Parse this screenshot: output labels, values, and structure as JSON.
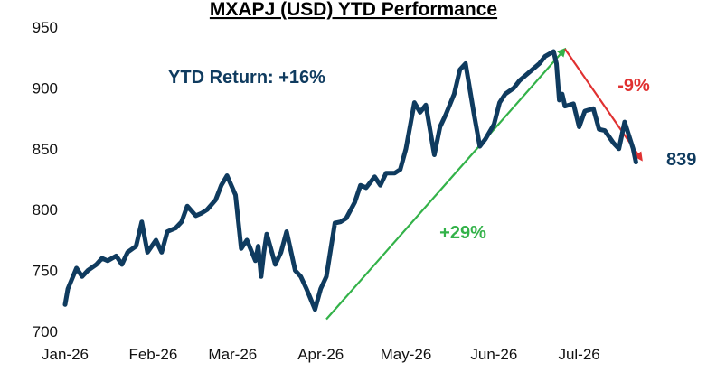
{
  "chart_data": {
    "type": "line",
    "title": "MXAPJ (USD) YTD Performance",
    "xlabel": "",
    "ylabel": "",
    "ylim": [
      700,
      950
    ],
    "yticks": [
      700,
      750,
      800,
      850,
      900,
      950
    ],
    "xtick_labels": [
      "Jan-26",
      "Feb-26",
      "Mar-26",
      "Apr-26",
      "May-26",
      "Jun-26",
      "Jul-26"
    ],
    "xlim": [
      "2026-01-01",
      "2026-07-25"
    ],
    "grid": false,
    "colors": {
      "line": "#0f3b5f",
      "up": "#33b249",
      "down": "#e03131",
      "text": "#0f3b5f"
    },
    "series": [
      {
        "x": [
          "2026-01-01",
          "2026-01-02",
          "2026-01-05",
          "2026-01-07",
          "2026-01-09",
          "2026-01-12",
          "2026-01-14",
          "2026-01-16",
          "2026-01-19",
          "2026-01-21",
          "2026-01-23",
          "2026-01-26",
          "2026-01-28",
          "2026-01-30",
          "2026-02-02",
          "2026-02-04",
          "2026-02-06",
          "2026-02-09",
          "2026-02-11",
          "2026-02-13",
          "2026-02-16",
          "2026-02-18",
          "2026-02-20",
          "2026-02-23",
          "2026-02-25",
          "2026-02-27",
          "2026-03-02",
          "2026-03-04",
          "2026-03-06",
          "2026-03-09",
          "2026-03-10",
          "2026-03-11",
          "2026-03-12",
          "2026-03-13",
          "2026-03-16",
          "2026-03-18",
          "2026-03-20",
          "2026-03-23",
          "2026-03-25",
          "2026-03-27",
          "2026-03-30",
          "2026-04-01",
          "2026-04-03",
          "2026-04-06",
          "2026-04-08",
          "2026-04-10",
          "2026-04-13",
          "2026-04-15",
          "2026-04-17",
          "2026-04-20",
          "2026-04-22",
          "2026-04-24",
          "2026-04-27",
          "2026-04-29",
          "2026-05-01",
          "2026-05-04",
          "2026-05-06",
          "2026-05-08",
          "2026-05-11",
          "2026-05-13",
          "2026-05-15",
          "2026-05-18",
          "2026-05-20",
          "2026-05-22",
          "2026-05-25",
          "2026-05-27",
          "2026-05-29",
          "2026-06-01",
          "2026-06-03",
          "2026-06-05",
          "2026-06-08",
          "2026-06-10",
          "2026-06-12",
          "2026-06-15",
          "2026-06-17",
          "2026-06-19",
          "2026-06-22",
          "2026-06-23",
          "2026-06-24",
          "2026-06-25",
          "2026-06-26",
          "2026-06-29",
          "2026-07-01",
          "2026-07-03",
          "2026-07-06",
          "2026-07-08",
          "2026-07-10",
          "2026-07-13",
          "2026-07-15",
          "2026-07-17",
          "2026-07-20",
          "2026-07-21"
        ],
        "y": [
          722,
          735,
          752,
          745,
          750,
          755,
          760,
          758,
          762,
          755,
          765,
          770,
          790,
          765,
          775,
          765,
          782,
          785,
          790,
          803,
          795,
          797,
          800,
          808,
          820,
          828,
          812,
          768,
          775,
          758,
          770,
          745,
          765,
          780,
          755,
          765,
          782,
          750,
          745,
          735,
          718,
          735,
          745,
          789,
          790,
          793,
          806,
          820,
          818,
          827,
          820,
          830,
          830,
          833,
          850,
          888,
          880,
          886,
          845,
          868,
          878,
          895,
          915,
          920,
          878,
          852,
          858,
          870,
          888,
          895,
          900,
          906,
          910,
          916,
          920,
          926,
          930,
          920,
          890,
          895,
          885,
          887,
          868,
          881,
          883,
          866,
          865,
          855,
          850,
          872,
          850,
          839
        ]
      }
    ],
    "annotations": {
      "ytd_return": "YTD Return: +16%",
      "up_move": "+29%",
      "down_move": "-9%",
      "last_value": "839"
    },
    "trend_arrows": [
      {
        "from": [
          "2026-04-03",
          710
        ],
        "to": [
          "2026-06-26",
          932
        ],
        "label": "+29%"
      },
      {
        "from": [
          "2026-06-26",
          932
        ],
        "to": [
          "2026-07-23",
          841
        ],
        "label": "-9%"
      }
    ]
  }
}
